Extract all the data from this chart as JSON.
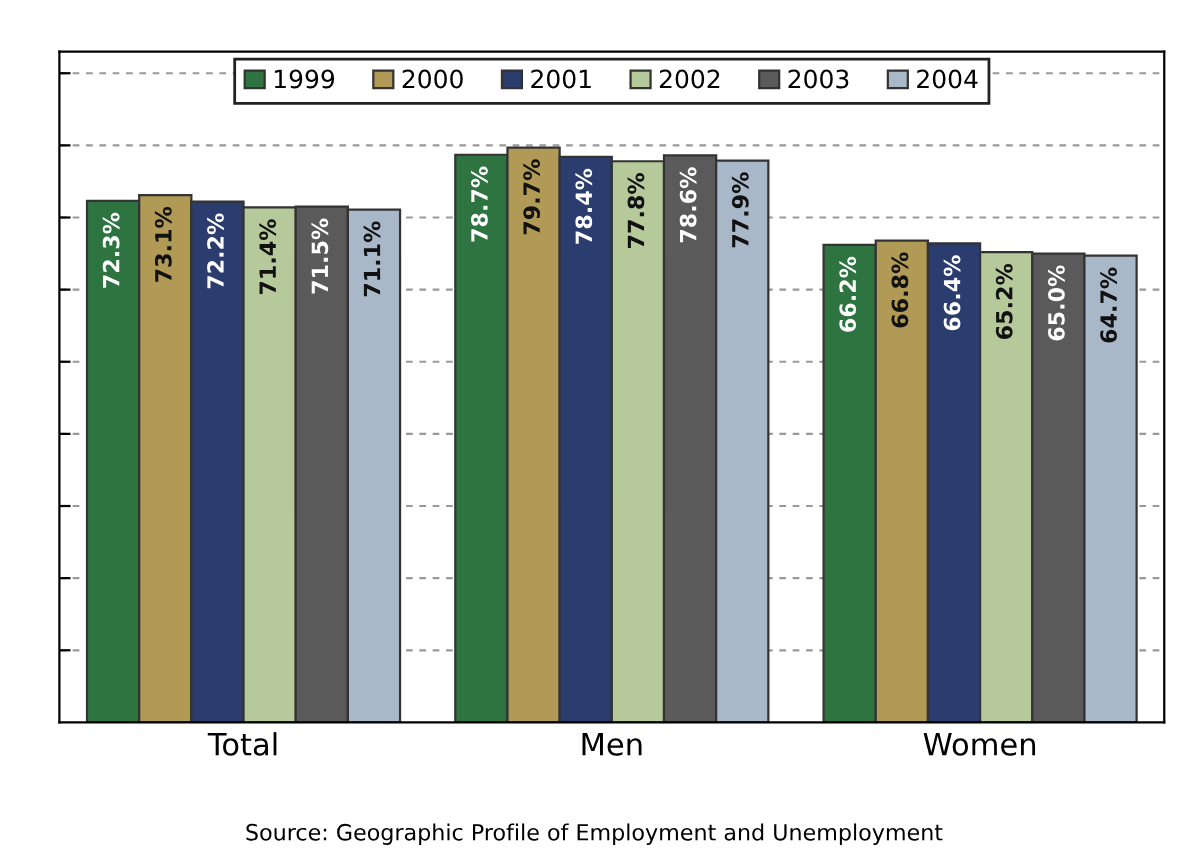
{
  "chart_data": {
    "type": "bar",
    "categories": [
      "Total",
      "Men",
      "Women"
    ],
    "series": [
      {
        "name": "1999",
        "color": "#2e7440",
        "values": [
          72.3,
          78.7,
          66.2
        ],
        "value_labels": [
          "72.3%",
          "78.7%",
          "66.2%"
        ]
      },
      {
        "name": "2000",
        "color": "#b09a55",
        "values": [
          73.1,
          79.7,
          66.8
        ],
        "value_labels": [
          "73.1%",
          "79.7%",
          "66.8%"
        ]
      },
      {
        "name": "2001",
        "color": "#2a3d6e",
        "values": [
          72.2,
          78.4,
          66.4
        ],
        "value_labels": [
          "72.2%",
          "78.4%",
          "66.4%"
        ]
      },
      {
        "name": "2002",
        "color": "#b5c99a",
        "values": [
          71.4,
          77.8,
          65.2
        ],
        "value_labels": [
          "71.4%",
          "77.8%",
          "65.2%"
        ]
      },
      {
        "name": "2003",
        "color": "#5a5a5a",
        "values": [
          71.5,
          78.6,
          65.0
        ],
        "value_labels": [
          "71.5%",
          "78.6%",
          "65.0%"
        ]
      },
      {
        "name": "2004",
        "color": "#a9b8c8",
        "values": [
          71.1,
          77.9,
          64.7
        ],
        "value_labels": [
          "71.1%",
          "77.9%",
          "64.7%"
        ]
      }
    ],
    "ylim": [
      0,
      93
    ],
    "yticks": [
      {
        "value": 10,
        "label": null
      },
      {
        "value": 20,
        "label": null
      },
      {
        "value": 30,
        "label": null
      },
      {
        "value": 40,
        "label": null
      },
      {
        "value": 50,
        "label": null
      },
      {
        "value": 60,
        "label": null
      },
      {
        "value": 70,
        "label": null
      },
      {
        "value": 80,
        "label": null
      },
      {
        "value": 90,
        "label": null
      }
    ],
    "grid": "y",
    "legend": "top",
    "annotations": [
      "Source: Geographic Profile of Employment and Unemployment"
    ]
  }
}
